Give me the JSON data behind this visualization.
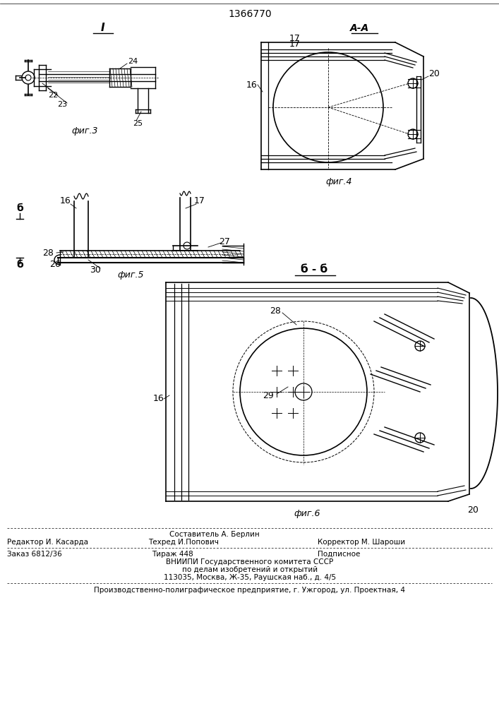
{
  "patent_number": "1366770",
  "background_color": "#ffffff",
  "line_color": "#000000",
  "fig_width": 7.07,
  "fig_height": 10.0,
  "footer": {
    "line1_left": "Редактор И. Касарда",
    "line1_center": "Составитель А. Берлин",
    "line2_center": "Техред И.Попович",
    "line2_right": "Корректор М. Шароши",
    "order": "Заказ 6812/36",
    "tirazh": "Тираж 448",
    "podpisnoe": "Подписное",
    "vnipi1": "ВНИИПИ Государственного комитета СССР",
    "vnipi2": "по делам изобретений и открытий",
    "vnipi3": "113035, Москва, Ж-35, Раушская наб., д. 4/5",
    "producer": "Производственно-полиграфическое предприятие, г. Ужгород, ул. Проектная, 4"
  }
}
